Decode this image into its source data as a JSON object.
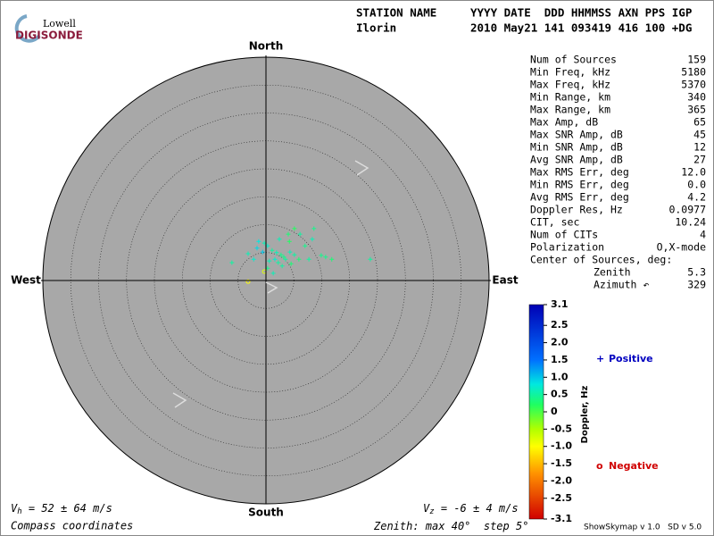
{
  "logo": {
    "top": "Lowell",
    "bottom": "DIGISONDE"
  },
  "header": {
    "station_label": "STATION NAME",
    "station": "Ilorin",
    "fields_label": "YYYY DATE  DDD HHMMSS AXN PPS IGP",
    "fields": "2010 May21 141 093419 416 100 +DG"
  },
  "compass": {
    "north": "North",
    "south": "South",
    "west": "West",
    "east": "East"
  },
  "stats": [
    [
      "Num of Sources",
      "159"
    ],
    [
      "Min Freq, kHz",
      "5180"
    ],
    [
      "Max Freq, kHz",
      "5370"
    ],
    [
      "Min Range, km",
      "340"
    ],
    [
      "Max Range, km",
      "365"
    ],
    [
      "Max Amp, dB",
      "65"
    ],
    [
      "Max SNR Amp, dB",
      "45"
    ],
    [
      "Min SNR Amp, dB",
      "12"
    ],
    [
      "Avg SNR Amp, dB",
      "27"
    ],
    [
      "Max RMS Err, deg",
      "12.0"
    ],
    [
      "Min RMS Err, deg",
      "0.0"
    ],
    [
      "Avg RMS Err, deg",
      "4.2"
    ],
    [
      "Doppler Res, Hz",
      "0.0977"
    ],
    [
      "CIT, sec",
      "10.24"
    ],
    [
      "Num of CITs",
      "4"
    ],
    [
      "Polarization",
      "O,X-mode"
    ]
  ],
  "center": {
    "title": "Center of Sources, deg:",
    "rows": [
      [
        "Zenith",
        "5.3"
      ],
      [
        "Azimuth ↶",
        "329"
      ]
    ]
  },
  "colorbar": {
    "title": "Doppler, Hz",
    "lim": [
      -3.1,
      3.1
    ],
    "ticks": [
      3.1,
      2.5,
      {
        "value": 2,
        "label": "2.0"
      },
      1.5,
      {
        "value": 1,
        "label": "1.0"
      },
      0.5,
      0,
      -0.5,
      {
        "value": -1,
        "label": "-1.0"
      },
      -1.5,
      {
        "value": -2,
        "label": "-2.0"
      },
      -2.5,
      -3.1
    ],
    "colorscale": [
      {
        "value": 3.1,
        "color": "#0000b4"
      },
      {
        "value": 1.5,
        "color": "#0070ff"
      },
      {
        "value": 0.8,
        "color": "#00e8e0"
      },
      {
        "value": 0.2,
        "color": "#20ff60"
      },
      {
        "value": -0.5,
        "color": "#b0ff00"
      },
      {
        "value": -1,
        "color": "#ffff00"
      },
      {
        "value": -1.8,
        "color": "#ff9000"
      },
      {
        "value": -3.1,
        "color": "#d00000"
      }
    ]
  },
  "legend": {
    "positive": {
      "marker": "+",
      "label": "Positive",
      "color": "#0000c0"
    },
    "negative": {
      "marker": "o",
      "label": "Negative",
      "color": "#d00000"
    }
  },
  "velocity": {
    "vh": {
      "symbol": "V",
      "sub": "h",
      "text": " = 52 ± 64 m/s"
    },
    "vz": {
      "symbol": "V",
      "sub": "z",
      "text": " = -6 ± 4 m/s"
    }
  },
  "footer": {
    "coords": "Compass coordinates",
    "zenith_label": "Zenith: max",
    "zenith_max": {
      "value": 40,
      "label": "40°"
    },
    "step_label": "step",
    "zenith_step": {
      "value": 5,
      "label": "5°"
    },
    "version": "ShowSkymap v 1.0   SD v 5.0"
  },
  "sources": {
    "east": [
      5.1,
      6.1,
      8.6,
      8.3,
      4.0,
      -1.3,
      -0.3,
      0.3,
      1.1,
      1.9,
      2.7,
      3.5,
      1.6,
      0.6,
      2.2,
      3.2,
      4.3,
      5.1,
      5.9,
      7.0,
      7.7,
      10.7,
      11.8,
      18.7,
      -3.2,
      -6.1,
      -2.2,
      -0.6,
      0.3,
      1.3,
      -0.3,
      -3.2,
      9.9,
      4.5,
      2.9,
      -1.6,
      2.4,
      4.2
    ],
    "north": [
      9.3,
      8.3,
      9.3,
      7.4,
      8.3,
      7.0,
      6.7,
      6.2,
      5.4,
      5.0,
      4.6,
      3.8,
      3.8,
      3.5,
      3.2,
      4.2,
      5.1,
      4.6,
      3.8,
      6.2,
      3.8,
      4.2,
      3.8,
      3.8,
      4.8,
      3.2,
      3.8,
      5.1,
      2.2,
      1.3,
      1.6,
      -0.2,
      4.5,
      3.0,
      2.6,
      5.8,
      7.4,
      7.0
    ],
    "doppler": [
      0.2,
      0.5,
      0.4,
      0.6,
      0.3,
      0.8,
      0.6,
      0.7,
      0.5,
      0.6,
      0.4,
      0.5,
      0.7,
      0.6,
      0.5,
      0.4,
      0.6,
      0.5,
      0.3,
      0.4,
      0.5,
      0.4,
      0.3,
      0.5,
      0.6,
      0.5,
      0.7,
      1.0,
      0.4,
      0.6,
      -0.8,
      -1.0,
      0.4,
      0.3,
      0.5,
      0.9,
      0.6,
      0.2
    ]
  }
}
